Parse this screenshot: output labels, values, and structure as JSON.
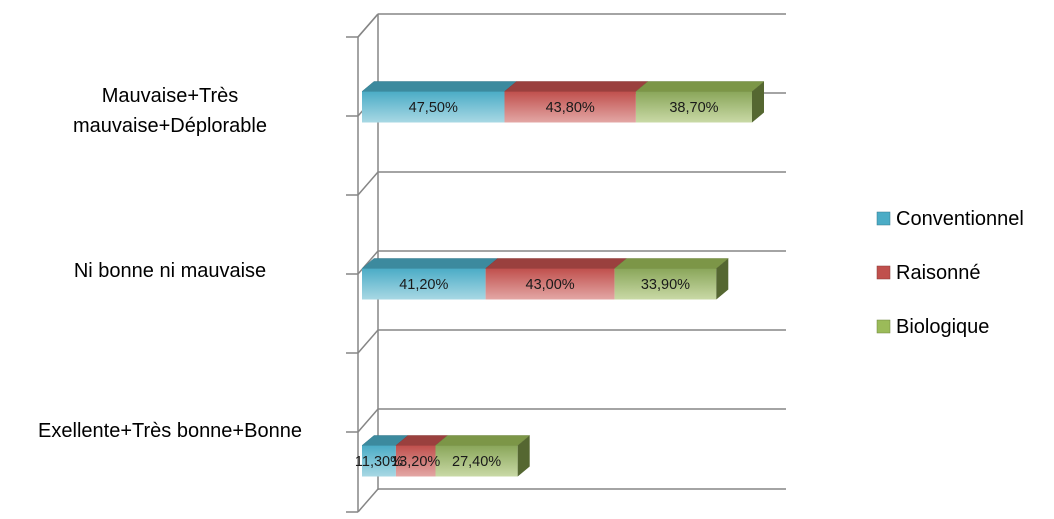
{
  "chart_data": {
    "type": "bar",
    "orientation": "horizontal",
    "stacked": true,
    "three_d": true,
    "categories": [
      "Mauvaise+Très mauvaise+Déplorable",
      "Ni bonne ni mauvaise",
      "Exellente+Très bonne+Bonne"
    ],
    "category_lines": [
      [
        "Mauvaise+Très",
        "mauvaise+Déplorable"
      ],
      [
        "Ni bonne ni mauvaise"
      ],
      [
        "Exellente+Très bonne+Bonne"
      ]
    ],
    "series": [
      {
        "name": "Conventionnel",
        "color": "#4BACC6",
        "values": [
          47.5,
          41.2,
          11.3
        ],
        "labels": [
          "47,50%",
          "41,20%",
          "11,30%"
        ]
      },
      {
        "name": "Raisonné",
        "color": "#C0504D",
        "values": [
          43.8,
          43.0,
          13.2
        ],
        "labels": [
          "43,80%",
          "43,00%",
          "13,20%"
        ]
      },
      {
        "name": "Biologique",
        "color": "#9BBB59",
        "values": [
          38.7,
          33.9,
          27.4
        ],
        "labels": [
          "38,70%",
          "33,90%",
          "27,40%"
        ]
      }
    ],
    "legend_position": "right",
    "grid": true,
    "value_axis_visible": false
  }
}
